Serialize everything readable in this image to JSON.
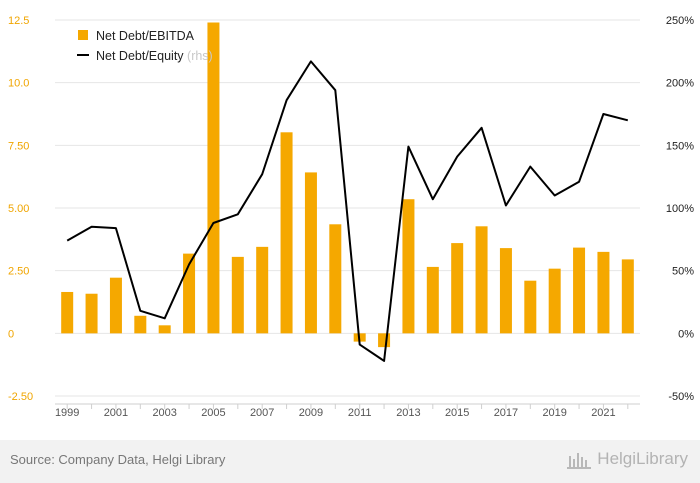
{
  "chart_data": {
    "type": "bar+line",
    "categories": [
      "1999",
      "2000",
      "2001",
      "2002",
      "2003",
      "2004",
      "2005",
      "2006",
      "2007",
      "2008",
      "2009",
      "2010",
      "2011",
      "2012",
      "2013",
      "2014",
      "2015",
      "2016",
      "2017",
      "2018",
      "2019",
      "2020",
      "2021",
      "2022"
    ],
    "x_tick_labels": [
      "1999",
      "2001",
      "2003",
      "2005",
      "2007",
      "2009",
      "2011",
      "2013",
      "2015",
      "2017",
      "2019",
      "2021"
    ],
    "series": [
      {
        "name": "Net Debt/EBITDA",
        "type": "bar",
        "axis": "left",
        "color": "#f5a800",
        "values": [
          1.65,
          1.58,
          2.22,
          0.7,
          0.32,
          3.18,
          12.4,
          3.05,
          3.45,
          8.02,
          6.42,
          4.35,
          -0.33,
          -0.55,
          5.35,
          2.65,
          3.6,
          4.27,
          3.4,
          2.1,
          2.58,
          3.42,
          3.25,
          2.95
        ]
      },
      {
        "name": "Net Debt/Equity",
        "legend_suffix": "(rhs)",
        "type": "line",
        "axis": "right",
        "color": "#000000",
        "values": [
          74,
          85,
          84,
          18,
          12,
          55,
          88,
          95,
          127,
          186,
          217,
          194,
          -9,
          -22,
          149,
          107,
          141,
          164,
          102,
          133,
          110,
          121,
          175,
          170
        ]
      }
    ],
    "y_left": {
      "min": -2.5,
      "max": 12.5,
      "ticks": [
        "12.5",
        "10.0",
        "7.50",
        "5.00",
        "2.50",
        "0",
        "-2.50"
      ],
      "tick_values": [
        12.5,
        10,
        7.5,
        5,
        2.5,
        0,
        -2.5
      ]
    },
    "y_right": {
      "min": -50,
      "max": 250,
      "ticks": [
        "250%",
        "200%",
        "150%",
        "100%",
        "50%",
        "0%",
        "-50%"
      ],
      "tick_values": [
        250,
        200,
        150,
        100,
        50,
        0,
        -50
      ]
    },
    "legend_position": "top-left",
    "grid": "horizontal"
  },
  "footer": {
    "source": "Source: Company Data, Helgi Library",
    "brand": "HelgiLibrary"
  }
}
